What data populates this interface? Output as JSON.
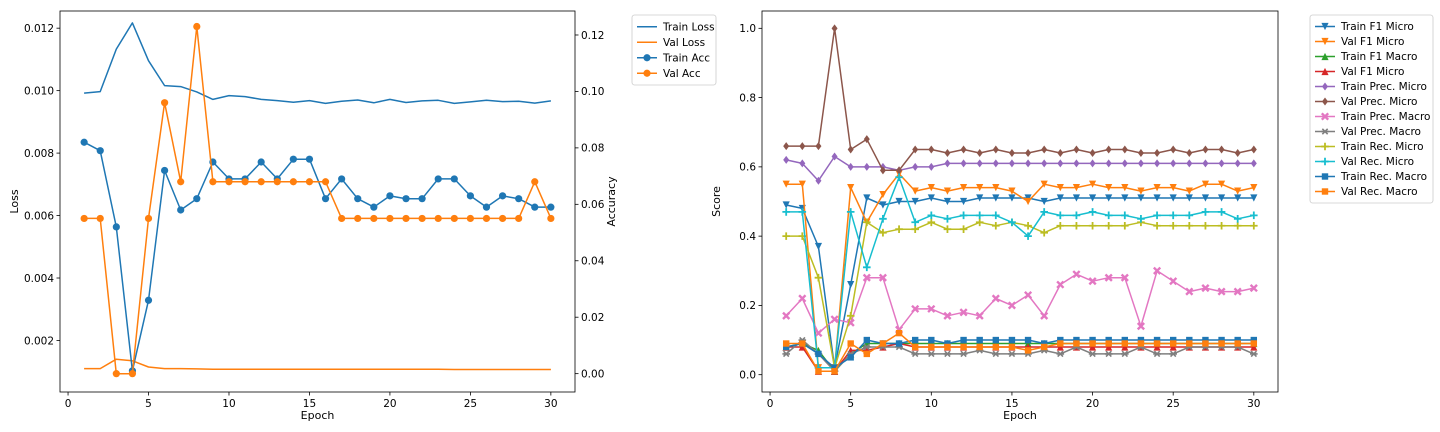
{
  "chart_data": [
    {
      "type": "line",
      "xlabel": "Epoch",
      "ylabel": "Loss",
      "y2label": "Accuracy",
      "xlim": [
        -0.5,
        31.5
      ],
      "xticks": [
        0,
        5,
        10,
        15,
        20,
        25,
        30
      ],
      "ylim": [
        0.00035,
        0.01255
      ],
      "yticks": [
        0.002,
        0.004,
        0.006,
        0.008,
        0.01,
        0.012
      ],
      "ytick_labels": [
        "0.002",
        "0.004",
        "0.006",
        "0.008",
        "0.010",
        "0.012"
      ],
      "y2lim": [
        -0.0065,
        0.1285
      ],
      "y2ticks": [
        0.0,
        0.02,
        0.04,
        0.06,
        0.08,
        0.1,
        0.12
      ],
      "y2tick_labels": [
        "0.00",
        "0.02",
        "0.04",
        "0.06",
        "0.08",
        "0.10",
        "0.12"
      ],
      "grid": false,
      "legend_position": "outside-top-right",
      "x": [
        1,
        2,
        3,
        4,
        5,
        6,
        7,
        8,
        9,
        10,
        11,
        12,
        13,
        14,
        15,
        16,
        17,
        18,
        19,
        20,
        21,
        22,
        23,
        24,
        25,
        26,
        27,
        28,
        29,
        30
      ],
      "series": [
        {
          "name": "Train Loss",
          "axis": "left",
          "color": "#1f77b4",
          "marker": "none",
          "values": [
            0.00992,
            0.00997,
            0.01133,
            0.01217,
            0.01096,
            0.01016,
            0.01013,
            0.00996,
            0.00972,
            0.00984,
            0.00981,
            0.00972,
            0.00968,
            0.00963,
            0.00968,
            0.00959,
            0.00966,
            0.0097,
            0.00961,
            0.00972,
            0.00962,
            0.00967,
            0.00969,
            0.00959,
            0.00964,
            0.00969,
            0.00965,
            0.00966,
            0.0096,
            0.00967
          ]
        },
        {
          "name": "Val Loss",
          "axis": "left",
          "color": "#ff7f0e",
          "marker": "none",
          "values": [
            0.0011,
            0.0011,
            0.0014,
            0.00135,
            0.00115,
            0.0011,
            0.0011,
            0.00109,
            0.00108,
            0.00108,
            0.00108,
            0.00108,
            0.00108,
            0.00108,
            0.00108,
            0.00108,
            0.00108,
            0.00108,
            0.00108,
            0.00108,
            0.00108,
            0.00108,
            0.00108,
            0.00107,
            0.00107,
            0.00107,
            0.00107,
            0.00107,
            0.00107,
            0.00107
          ]
        },
        {
          "name": "Train Acc",
          "axis": "right",
          "color": "#1f77b4",
          "marker": "circle",
          "values": [
            0.082,
            0.079,
            0.052,
            0.001,
            0.026,
            0.072,
            0.058,
            0.062,
            0.075,
            0.069,
            0.069,
            0.075,
            0.069,
            0.076,
            0.076,
            0.062,
            0.069,
            0.062,
            0.059,
            0.063,
            0.062,
            0.062,
            0.069,
            0.069,
            0.063,
            0.059,
            0.063,
            0.062,
            0.059,
            0.059
          ]
        },
        {
          "name": "Val Acc",
          "axis": "right",
          "color": "#ff7f0e",
          "marker": "circle",
          "values": [
            0.055,
            0.055,
            0.0,
            0.0,
            0.055,
            0.096,
            0.068,
            0.123,
            0.068,
            0.068,
            0.068,
            0.068,
            0.068,
            0.068,
            0.068,
            0.068,
            0.055,
            0.055,
            0.055,
            0.055,
            0.055,
            0.055,
            0.055,
            0.055,
            0.055,
            0.055,
            0.055,
            0.055,
            0.068,
            0.055
          ]
        }
      ]
    },
    {
      "type": "line",
      "xlabel": "Epoch",
      "ylabel": "Score",
      "xlim": [
        -0.5,
        31.5
      ],
      "xticks": [
        0,
        5,
        10,
        15,
        20,
        25,
        30
      ],
      "ylim": [
        -0.05,
        1.05
      ],
      "yticks": [
        0.0,
        0.2,
        0.4,
        0.6,
        0.8,
        1.0
      ],
      "ytick_labels": [
        "0.0",
        "0.2",
        "0.4",
        "0.6",
        "0.8",
        "1.0"
      ],
      "grid": false,
      "legend_position": "outside-top-right",
      "x": [
        1,
        2,
        3,
        4,
        5,
        6,
        7,
        8,
        9,
        10,
        11,
        12,
        13,
        14,
        15,
        16,
        17,
        18,
        19,
        20,
        21,
        22,
        23,
        24,
        25,
        26,
        27,
        28,
        29,
        30
      ],
      "series": [
        {
          "name": "Train F1 Micro",
          "color": "#1f77b4",
          "marker": "tri_down",
          "values": [
            0.49,
            0.48,
            0.37,
            0.02,
            0.26,
            0.51,
            0.49,
            0.5,
            0.5,
            0.51,
            0.5,
            0.5,
            0.51,
            0.51,
            0.51,
            0.51,
            0.5,
            0.51,
            0.51,
            0.51,
            0.51,
            0.51,
            0.51,
            0.51,
            0.51,
            0.51,
            0.51,
            0.51,
            0.51,
            0.51
          ]
        },
        {
          "name": "Val F1 Micro",
          "color": "#ff7f0e",
          "marker": "tri_down",
          "values": [
            0.55,
            0.55,
            0.02,
            0.02,
            0.54,
            0.44,
            0.52,
            0.58,
            0.53,
            0.54,
            0.53,
            0.54,
            0.54,
            0.54,
            0.53,
            0.5,
            0.55,
            0.54,
            0.54,
            0.55,
            0.54,
            0.54,
            0.53,
            0.54,
            0.54,
            0.53,
            0.55,
            0.55,
            0.53,
            0.54
          ]
        },
        {
          "name": "Train F1 Macro",
          "color": "#2ca02c",
          "marker": "tri_up",
          "values": [
            0.08,
            0.09,
            0.07,
            0.01,
            0.06,
            0.09,
            0.09,
            0.09,
            0.09,
            0.09,
            0.09,
            0.09,
            0.09,
            0.09,
            0.09,
            0.09,
            0.09,
            0.09,
            0.09,
            0.09,
            0.09,
            0.09,
            0.09,
            0.09,
            0.09,
            0.09,
            0.09,
            0.09,
            0.09,
            0.09
          ]
        },
        {
          "name": "Val F1 Micro",
          "color": "#d62728",
          "marker": "tri_up",
          "values": [
            0.08,
            0.08,
            0.01,
            0.01,
            0.07,
            0.07,
            0.08,
            0.09,
            0.08,
            0.08,
            0.08,
            0.08,
            0.08,
            0.08,
            0.08,
            0.08,
            0.08,
            0.08,
            0.08,
            0.08,
            0.08,
            0.08,
            0.08,
            0.08,
            0.08,
            0.08,
            0.08,
            0.08,
            0.08,
            0.08
          ]
        },
        {
          "name": "Train Prec. Micro",
          "color": "#9467bd",
          "marker": "diamond",
          "values": [
            0.62,
            0.61,
            0.56,
            0.63,
            0.6,
            0.6,
            0.6,
            0.59,
            0.6,
            0.6,
            0.61,
            0.61,
            0.61,
            0.61,
            0.61,
            0.61,
            0.61,
            0.61,
            0.61,
            0.61,
            0.61,
            0.61,
            0.61,
            0.61,
            0.61,
            0.61,
            0.61,
            0.61,
            0.61,
            0.61
          ]
        },
        {
          "name": "Val Prec. Micro",
          "color": "#8c564b",
          "marker": "diamond",
          "values": [
            0.66,
            0.66,
            0.66,
            1.0,
            0.65,
            0.68,
            0.59,
            0.59,
            0.65,
            0.65,
            0.64,
            0.65,
            0.64,
            0.65,
            0.64,
            0.64,
            0.65,
            0.64,
            0.65,
            0.64,
            0.65,
            0.65,
            0.64,
            0.64,
            0.65,
            0.64,
            0.65,
            0.65,
            0.64,
            0.65
          ]
        },
        {
          "name": "Train Prec. Macro",
          "color": "#e377c2",
          "marker": "x",
          "values": [
            0.17,
            0.22,
            0.12,
            0.16,
            0.15,
            0.28,
            0.28,
            0.13,
            0.19,
            0.19,
            0.17,
            0.18,
            0.17,
            0.22,
            0.2,
            0.23,
            0.17,
            0.26,
            0.29,
            0.27,
            0.28,
            0.28,
            0.14,
            0.3,
            0.27,
            0.24,
            0.25,
            0.24,
            0.24,
            0.25
          ]
        },
        {
          "name": "Val Prec. Macro",
          "color": "#7f7f7f",
          "marker": "star",
          "values": [
            0.06,
            0.1,
            0.06,
            0.01,
            0.06,
            0.08,
            0.08,
            0.08,
            0.06,
            0.06,
            0.06,
            0.06,
            0.07,
            0.06,
            0.06,
            0.06,
            0.07,
            0.06,
            0.08,
            0.06,
            0.06,
            0.06,
            0.08,
            0.06,
            0.06,
            0.08,
            0.08,
            0.08,
            0.08,
            0.06
          ]
        },
        {
          "name": "Train Rec. Micro",
          "color": "#bcbd22",
          "marker": "plus",
          "values": [
            0.4,
            0.4,
            0.28,
            0.02,
            0.17,
            0.44,
            0.41,
            0.42,
            0.42,
            0.44,
            0.42,
            0.42,
            0.44,
            0.43,
            0.44,
            0.43,
            0.41,
            0.43,
            0.43,
            0.43,
            0.43,
            0.43,
            0.44,
            0.43,
            0.43,
            0.43,
            0.43,
            0.43,
            0.43,
            0.43
          ]
        },
        {
          "name": "Val Rec. Micro",
          "color": "#17becf",
          "marker": "plus",
          "values": [
            0.47,
            0.47,
            0.02,
            0.02,
            0.47,
            0.31,
            0.45,
            0.57,
            0.44,
            0.46,
            0.45,
            0.46,
            0.46,
            0.46,
            0.44,
            0.4,
            0.47,
            0.46,
            0.46,
            0.47,
            0.46,
            0.46,
            0.45,
            0.46,
            0.46,
            0.46,
            0.47,
            0.47,
            0.45,
            0.46
          ]
        },
        {
          "name": "Train Rec. Macro",
          "color": "#1f77b4",
          "marker": "square",
          "values": [
            0.08,
            0.09,
            0.06,
            0.02,
            0.05,
            0.1,
            0.09,
            0.09,
            0.1,
            0.1,
            0.09,
            0.1,
            0.1,
            0.1,
            0.1,
            0.1,
            0.09,
            0.1,
            0.1,
            0.1,
            0.1,
            0.1,
            0.1,
            0.1,
            0.1,
            0.1,
            0.1,
            0.1,
            0.1,
            0.1
          ]
        },
        {
          "name": "Val Rec. Macro",
          "color": "#ff7f0e",
          "marker": "square",
          "values": [
            0.09,
            0.09,
            0.01,
            0.01,
            0.09,
            0.06,
            0.09,
            0.12,
            0.08,
            0.08,
            0.08,
            0.08,
            0.08,
            0.08,
            0.08,
            0.07,
            0.08,
            0.09,
            0.09,
            0.09,
            0.09,
            0.09,
            0.09,
            0.09,
            0.09,
            0.09,
            0.09,
            0.09,
            0.09,
            0.09
          ]
        }
      ]
    }
  ]
}
